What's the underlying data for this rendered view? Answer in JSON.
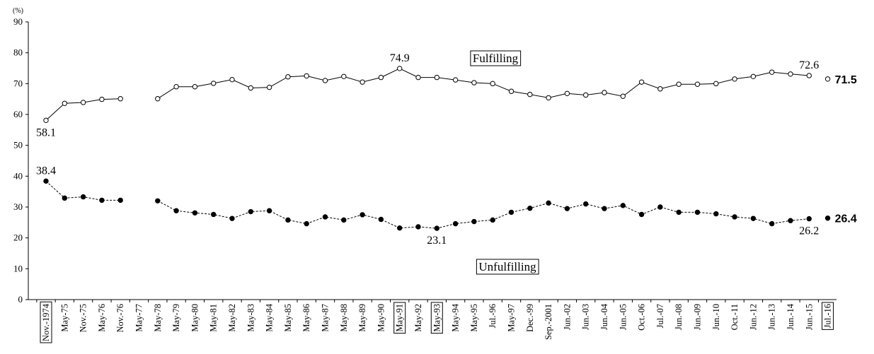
{
  "chart_data": {
    "type": "line",
    "y_unit": "(%)",
    "categories": [
      "Nov.-1974",
      "May-75",
      "Nov.-75",
      "May-76",
      "Nov.-76",
      "May-77",
      "May-78",
      "May-79",
      "May-80",
      "May-81",
      "May-82",
      "May-83",
      "May-84",
      "May-85",
      "May-86",
      "May-87",
      "May-88",
      "May-89",
      "May-90",
      "May-91",
      "May-92",
      "May-93",
      "May-94",
      "May-95",
      "Jul.-96",
      "May-97",
      "Dec.-99",
      "Sep.-2001",
      "Jun.-02",
      "Jun.-03",
      "Jun.-04",
      "Jun.-05",
      "Oct.-06",
      "Jul.-07",
      "Jun.-08",
      "Jun.-09",
      "Jun.-10",
      "Oct.-11",
      "Jun.-12",
      "Jun.-13",
      "Jun.-14",
      "Jun.-15",
      "Jul.-16"
    ],
    "highlighted_categories": [
      0,
      19,
      21,
      42
    ],
    "series": [
      {
        "name": "Fulfilling",
        "color": "#000000",
        "marker": "open",
        "line": "solid",
        "values": [
          58.1,
          63.6,
          63.9,
          64.9,
          65.1,
          null,
          65.1,
          69.0,
          69.0,
          70.1,
          71.3,
          68.6,
          68.8,
          72.2,
          72.5,
          71.0,
          72.3,
          70.5,
          72.0,
          74.9,
          72.0,
          72.0,
          71.2,
          70.3,
          70.0,
          67.5,
          66.5,
          65.4,
          66.8,
          66.3,
          67.1,
          65.9,
          70.5,
          68.3,
          69.8,
          69.8,
          70.0,
          71.5,
          72.3,
          73.7,
          73.1,
          72.6,
          71.5
        ],
        "labels": [
          {
            "index": 0,
            "position": "below"
          },
          {
            "index": 19,
            "position": "above"
          },
          {
            "index": 41,
            "position": "above"
          },
          {
            "index": 42,
            "position": "right"
          }
        ]
      },
      {
        "name": "Unfulfilling",
        "color": "#000000",
        "marker": "filled",
        "line": "dashed",
        "values": [
          38.4,
          32.9,
          33.3,
          32.2,
          32.2,
          null,
          32.0,
          28.8,
          28.1,
          27.6,
          26.3,
          28.5,
          28.8,
          25.8,
          24.6,
          26.8,
          25.8,
          27.5,
          26.0,
          23.2,
          23.6,
          23.1,
          24.6,
          25.3,
          25.8,
          28.3,
          29.6,
          31.3,
          29.5,
          31.0,
          29.5,
          30.5,
          27.6,
          30.0,
          28.3,
          28.3,
          27.8,
          26.8,
          26.3,
          24.6,
          25.6,
          26.2,
          26.4
        ],
        "labels": [
          {
            "index": 0,
            "position": "above"
          },
          {
            "index": 21,
            "position": "below"
          },
          {
            "index": 41,
            "position": "below"
          },
          {
            "index": 42,
            "position": "right"
          }
        ]
      }
    ],
    "ylim": [
      0,
      90
    ],
    "yticks": [
      0,
      10,
      20,
      30,
      40,
      50,
      60,
      70,
      80,
      90
    ],
    "grid": false
  }
}
